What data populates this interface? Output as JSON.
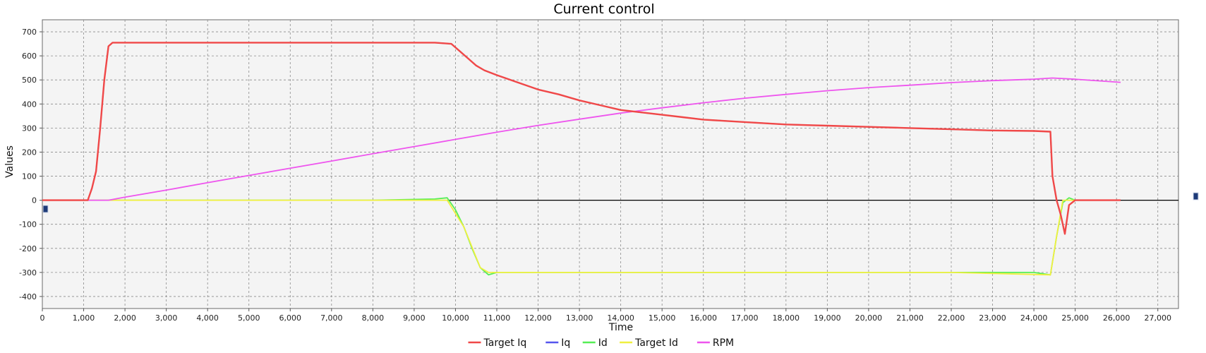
{
  "chart_data": {
    "type": "line",
    "title": "Current control",
    "xlabel": "Time",
    "ylabel": "Values",
    "xlim": [
      0,
      27500
    ],
    "ylim": [
      -450,
      750
    ],
    "xticks": [
      0,
      1000,
      2000,
      3000,
      4000,
      5000,
      6000,
      7000,
      8000,
      9000,
      10000,
      11000,
      12000,
      13000,
      14000,
      15000,
      16000,
      17000,
      18000,
      19000,
      20000,
      21000,
      22000,
      23000,
      24000,
      25000,
      26000,
      27000
    ],
    "xtick_labels": [
      "0",
      "1,000",
      "2,000",
      "3,000",
      "4,000",
      "5,000",
      "6,000",
      "7,000",
      "8,000",
      "9,000",
      "10,000",
      "11,000",
      "12,000",
      "13,000",
      "14,000",
      "15,000",
      "16,000",
      "17,000",
      "18,000",
      "19,000",
      "20,000",
      "21,000",
      "22,000",
      "23,000",
      "24,000",
      "25,000",
      "26,000",
      "27,000"
    ],
    "yticks": [
      -400,
      -300,
      -200,
      -100,
      0,
      100,
      200,
      300,
      400,
      500,
      600,
      700
    ],
    "ytick_labels": [
      "-400",
      "-300",
      "-200",
      "-100",
      "0",
      "100",
      "200",
      "300",
      "400",
      "500",
      "600",
      "700"
    ],
    "grid": true,
    "legend_position": "bottom-center",
    "series": [
      {
        "name": "Target Iq",
        "color": "#f04848",
        "x": [
          0,
          1100,
          1200,
          1300,
          1400,
          1500,
          1600,
          1700,
          2000,
          4000,
          6000,
          8000,
          9500,
          9900,
          10100,
          10300,
          10500,
          10700,
          11000,
          11500,
          12000,
          12500,
          13000,
          13500,
          14000,
          14500,
          15000,
          15500,
          16000,
          17000,
          18000,
          19000,
          20000,
          21000,
          22000,
          23000,
          24000,
          24400,
          24450,
          24550,
          24650,
          24750,
          24850,
          25000,
          25500,
          26100
        ],
        "values": [
          0,
          0,
          50,
          120,
          300,
          500,
          640,
          655,
          655,
          655,
          655,
          655,
          655,
          650,
          620,
          590,
          560,
          540,
          520,
          490,
          460,
          440,
          415,
          395,
          375,
          365,
          355,
          345,
          335,
          325,
          315,
          310,
          305,
          300,
          295,
          290,
          288,
          285,
          100,
          0,
          -60,
          -140,
          -20,
          0,
          0,
          0
        ]
      },
      {
        "name": "Iq",
        "color": "#5555ee",
        "x": [
          0,
          1100,
          1200,
          1300,
          1400,
          1500,
          1600,
          1700,
          2000,
          4000,
          6000,
          8000,
          9500,
          9900,
          10100,
          10300,
          10500,
          10700,
          11000,
          11500,
          12000,
          12500,
          13000,
          13500,
          14000,
          14500,
          15000,
          15500,
          16000,
          17000,
          18000,
          19000,
          20000,
          21000,
          22000,
          23000,
          24000,
          24400,
          24450,
          24550,
          24650,
          24750,
          24850,
          25000,
          25500,
          26100
        ],
        "values": [
          0,
          0,
          50,
          120,
          300,
          500,
          640,
          655,
          655,
          655,
          655,
          655,
          655,
          650,
          620,
          590,
          560,
          540,
          520,
          490,
          460,
          440,
          415,
          395,
          375,
          365,
          355,
          345,
          335,
          325,
          315,
          310,
          305,
          300,
          295,
          290,
          288,
          285,
          100,
          0,
          -60,
          -140,
          -20,
          0,
          0,
          0
        ]
      },
      {
        "name": "Id",
        "color": "#55ee55",
        "x": [
          0,
          1100,
          2000,
          4000,
          6000,
          8000,
          9500,
          9800,
          10000,
          10200,
          10400,
          10600,
          10800,
          11000,
          12000,
          14000,
          16000,
          18000,
          20000,
          22000,
          24000,
          24400,
          24550,
          24700,
          24850,
          25000,
          26100
        ],
        "values": [
          0,
          0,
          0,
          0,
          0,
          0,
          5,
          10,
          -40,
          -110,
          -200,
          -280,
          -310,
          -300,
          -300,
          -300,
          -300,
          -300,
          -300,
          -300,
          -300,
          -310,
          -150,
          -10,
          10,
          0,
          0
        ]
      },
      {
        "name": "Target Id",
        "color": "#f0f040",
        "x": [
          0,
          9800,
          10200,
          10600,
          10800,
          11000,
          14000,
          18000,
          22000,
          24400,
          24550,
          24700,
          26100
        ],
        "values": [
          0,
          0,
          -110,
          -280,
          -300,
          -300,
          -300,
          -300,
          -300,
          -310,
          -150,
          0,
          0
        ]
      },
      {
        "name": "RPM",
        "color": "#ee55ee",
        "x": [
          0,
          1300,
          1600,
          2000,
          3000,
          4000,
          5000,
          6000,
          7000,
          8000,
          9000,
          10000,
          11000,
          12000,
          13000,
          14000,
          15000,
          16000,
          17000,
          18000,
          19000,
          20000,
          21000,
          22000,
          23000,
          24000,
          24450,
          25000,
          26100
        ],
        "values": [
          0,
          0,
          0,
          13,
          42,
          73,
          103,
          133,
          163,
          193,
          223,
          253,
          283,
          311,
          337,
          362,
          384,
          405,
          424,
          440,
          455,
          468,
          478,
          489,
          497,
          503,
          508,
          503,
          490
        ]
      }
    ]
  }
}
